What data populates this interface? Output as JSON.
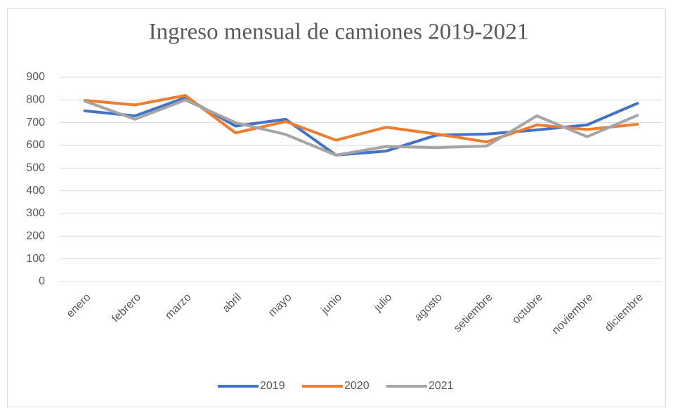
{
  "chart_data": {
    "type": "line",
    "title": "Ingreso mensual de camiones 2019-2021",
    "categories": [
      "enero",
      "febrero",
      "marzo",
      "abril",
      "mayo",
      "junio",
      "julio",
      "agosto",
      "setiembre",
      "octubre",
      "noviembre",
      "diciembre"
    ],
    "series": [
      {
        "name": "2019",
        "color": "#4472c4",
        "values": [
          752,
          730,
          810,
          685,
          715,
          557,
          575,
          645,
          650,
          668,
          690,
          785
        ]
      },
      {
        "name": "2020",
        "color": "#ed7d31",
        "values": [
          798,
          778,
          820,
          655,
          705,
          623,
          680,
          650,
          615,
          690,
          670,
          693
        ]
      },
      {
        "name": "2021",
        "color": "#a5a5a5",
        "values": [
          795,
          715,
          800,
          700,
          648,
          557,
          595,
          590,
          597,
          730,
          638,
          732
        ]
      }
    ],
    "ylim": [
      0,
      900
    ],
    "yticks": [
      0,
      100,
      200,
      300,
      400,
      500,
      600,
      700,
      800,
      900
    ],
    "grid": true,
    "legend": "bottom"
  }
}
